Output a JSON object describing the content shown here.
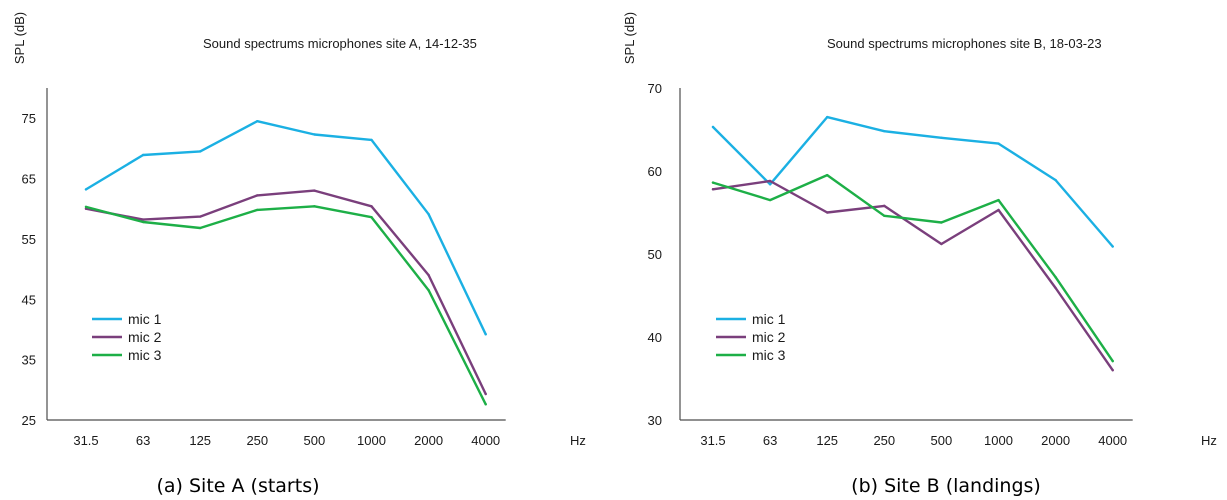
{
  "chart_data": [
    {
      "type": "line",
      "title": "Sound spectrums microphones site A, 14-12-35",
      "ylabel": "SPL (dB)",
      "xlabel": "Hz",
      "caption": "(a) Site A (starts)",
      "categories": [
        "31.5",
        "63",
        "125",
        "250",
        "500",
        "1000",
        "2000",
        "4000"
      ],
      "ylim": [
        25,
        80
      ],
      "yticks": [
        "25",
        "35",
        "45",
        "55",
        "65",
        "75"
      ],
      "grid": false,
      "legend_position": "bottom-left",
      "series": [
        {
          "name": "mic 1",
          "color": "#1BB0E3",
          "values": [
            63.2,
            68.9,
            69.5,
            74.5,
            72.3,
            71.4,
            59.1,
            39.2
          ]
        },
        {
          "name": "mic 2",
          "color": "#7A3F7C",
          "values": [
            60.0,
            58.2,
            58.7,
            62.2,
            63.0,
            60.4,
            49.0,
            29.3
          ]
        },
        {
          "name": "mic 3",
          "color": "#1DAF47",
          "values": [
            60.3,
            57.8,
            56.8,
            59.8,
            60.4,
            58.6,
            46.5,
            27.6
          ]
        }
      ]
    },
    {
      "type": "line",
      "title": "Sound spectrums microphones site B, 18-03-23",
      "ylabel": "SPL (dB)",
      "xlabel": "Hz",
      "caption": "(b) Site B (landings)",
      "categories": [
        "31.5",
        "63",
        "125",
        "250",
        "500",
        "1000",
        "2000",
        "4000"
      ],
      "ylim": [
        30,
        70
      ],
      "yticks": [
        "30",
        "40",
        "50",
        "60",
        "70"
      ],
      "grid": false,
      "legend_position": "bottom-left",
      "series": [
        {
          "name": "mic 1",
          "color": "#1BB0E3",
          "values": [
            65.3,
            58.4,
            66.5,
            64.8,
            64.0,
            63.3,
            58.9,
            50.9
          ]
        },
        {
          "name": "mic 2",
          "color": "#7A3F7C",
          "values": [
            57.8,
            58.8,
            55.0,
            55.8,
            51.2,
            55.3,
            45.9,
            36.0
          ]
        },
        {
          "name": "mic 3",
          "color": "#1DAF47",
          "values": [
            58.6,
            56.5,
            59.5,
            54.6,
            53.8,
            56.5,
            47.2,
            37.1
          ]
        }
      ]
    }
  ]
}
